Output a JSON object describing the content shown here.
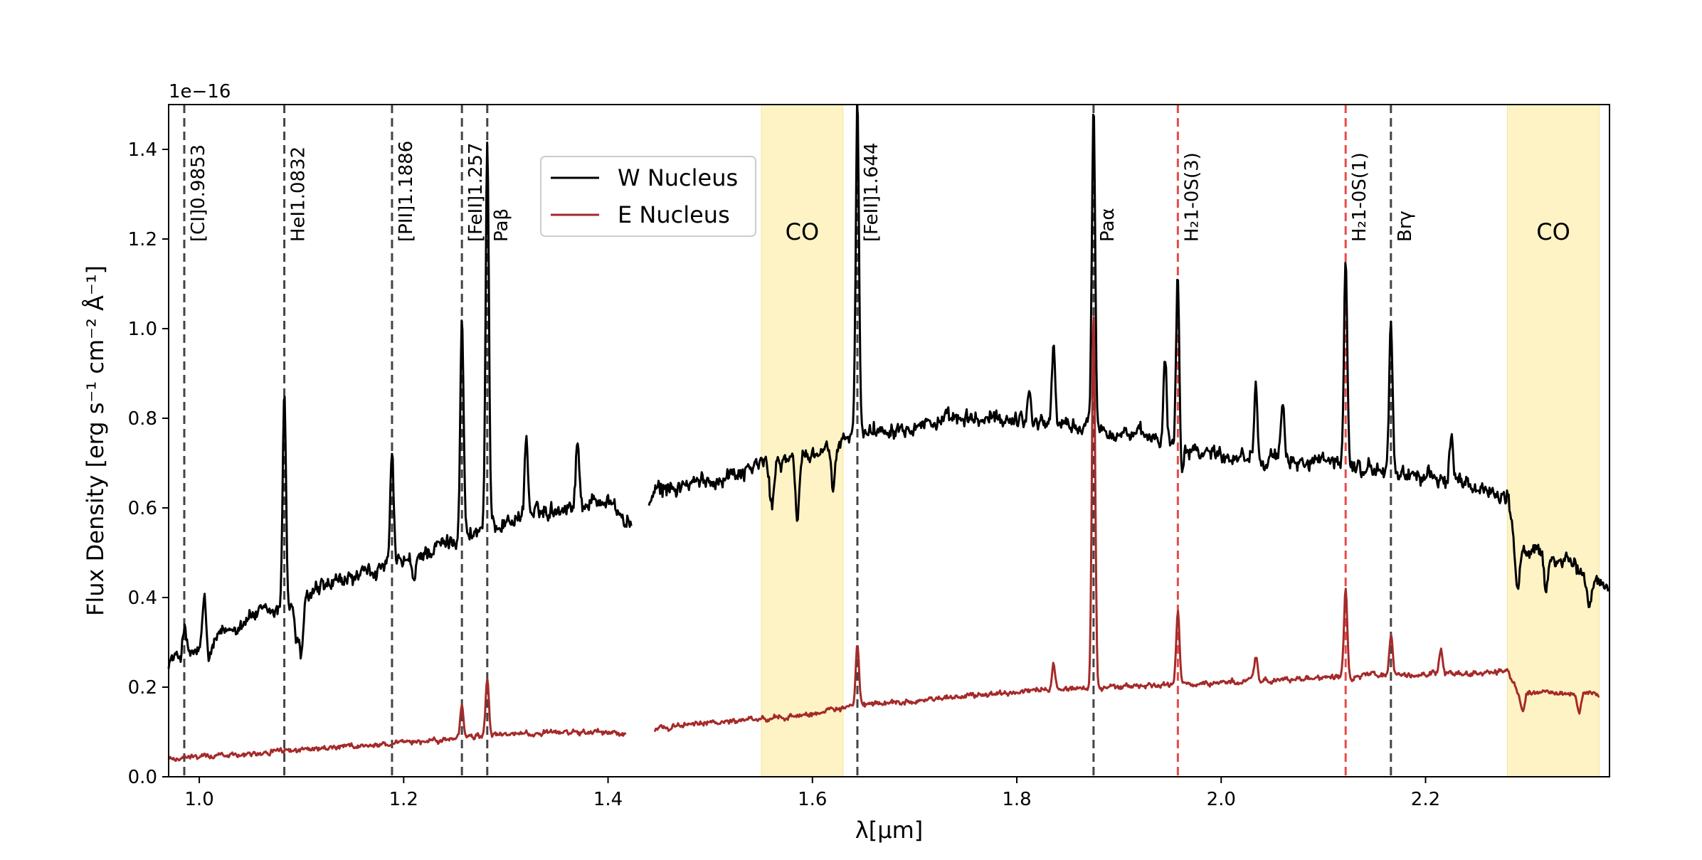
{
  "chart_data": {
    "type": "line",
    "title": "",
    "xlabel": "λ[μm]",
    "ylabel": "Flux Density [erg s⁻¹ cm⁻² Å⁻¹]",
    "y_offset_text": "1e−16",
    "xlim": [
      0.97,
      2.38
    ],
    "ylim": [
      0.0,
      1.5
    ],
    "xticks": [
      1.0,
      1.2,
      1.4,
      1.6,
      1.8,
      2.0,
      2.2
    ],
    "xtick_labels": [
      "1.0",
      "1.2",
      "1.4",
      "1.6",
      "1.8",
      "2.0",
      "2.2"
    ],
    "yticks": [
      0.0,
      0.2,
      0.4,
      0.6,
      0.8,
      1.0,
      1.2,
      1.4
    ],
    "ytick_labels": [
      "0.0",
      "0.2",
      "0.4",
      "0.6",
      "0.8",
      "1.0",
      "1.2",
      "1.4"
    ],
    "grid": false,
    "legend_position": "upper-center-left",
    "bands": [
      {
        "label": "CO",
        "x0": 1.55,
        "x1": 1.63,
        "color": "#fdf3c4"
      },
      {
        "label": "CO",
        "x0": 2.28,
        "x1": 2.37,
        "color": "#fdf3c4"
      }
    ],
    "lines": [
      {
        "label": "[CI]0.9853",
        "x": 0.9853,
        "color": "#444444"
      },
      {
        "label": "HeI1.0832",
        "x": 1.0832,
        "color": "#444444"
      },
      {
        "label": "[PII]1.1886",
        "x": 1.1886,
        "color": "#444444"
      },
      {
        "label": "[FeII]1.257",
        "x": 1.257,
        "color": "#444444"
      },
      {
        "label": "Paβ",
        "x": 1.2818,
        "color": "#444444"
      },
      {
        "label": "[FeII]1.644",
        "x": 1.644,
        "color": "#444444"
      },
      {
        "label": "Paα",
        "x": 1.8751,
        "color": "#444444"
      },
      {
        "label": "H₂1-0S(3)",
        "x": 1.9576,
        "color": "#e84a4a"
      },
      {
        "label": "H₂1-0S(1)",
        "x": 2.1218,
        "color": "#e84a4a"
      },
      {
        "label": "Brγ",
        "x": 2.1661,
        "color": "#444444"
      }
    ],
    "series": [
      {
        "name": "W Nucleus",
        "color": "#000000",
        "continuum": [
          [
            0.97,
            0.26
          ],
          [
            1.0,
            0.28
          ],
          [
            1.05,
            0.36
          ],
          [
            1.08,
            0.37
          ],
          [
            1.12,
            0.42
          ],
          [
            1.2,
            0.48
          ],
          [
            1.25,
            0.53
          ],
          [
            1.3,
            0.57
          ],
          [
            1.35,
            0.6
          ],
          [
            1.4,
            0.62
          ],
          [
            1.42,
            0.56
          ],
          [
            1.45,
            0.64
          ],
          [
            1.5,
            0.66
          ],
          [
            1.55,
            0.7
          ],
          [
            1.6,
            0.72
          ],
          [
            1.65,
            0.77
          ],
          [
            1.7,
            0.79
          ],
          [
            1.8,
            0.8
          ],
          [
            1.9,
            0.77
          ],
          [
            2.0,
            0.72
          ],
          [
            2.1,
            0.7
          ],
          [
            2.2,
            0.67
          ],
          [
            2.28,
            0.63
          ],
          [
            2.29,
            0.5
          ],
          [
            2.32,
            0.5
          ],
          [
            2.38,
            0.42
          ]
        ],
        "peaks": [
          [
            0.9853,
            0.34
          ],
          [
            1.005,
            0.4
          ],
          [
            1.0832,
            0.87
          ],
          [
            1.095,
            0.3
          ],
          [
            1.1886,
            0.72
          ],
          [
            1.257,
            1.03
          ],
          [
            1.2818,
            1.4
          ],
          [
            1.32,
            0.76
          ],
          [
            1.37,
            0.75
          ],
          [
            1.644,
            1.5
          ],
          [
            1.812,
            0.86
          ],
          [
            1.836,
            0.96
          ],
          [
            1.8751,
            1.5
          ],
          [
            1.945,
            0.94
          ],
          [
            1.9576,
            1.16
          ],
          [
            2.034,
            0.88
          ],
          [
            2.06,
            0.82
          ],
          [
            2.1218,
            1.16
          ],
          [
            2.1661,
            1.02
          ],
          [
            2.225,
            0.77
          ]
        ],
        "dips": [
          [
            1.01,
            0.26
          ],
          [
            1.1,
            0.27
          ],
          [
            1.21,
            0.43
          ],
          [
            1.56,
            0.6
          ],
          [
            1.585,
            0.58
          ],
          [
            1.62,
            0.63
          ],
          [
            1.96,
            0.66
          ],
          [
            2.29,
            0.41
          ],
          [
            2.318,
            0.42
          ],
          [
            2.36,
            0.37
          ]
        ],
        "gap": [
          1.423,
          1.44
        ]
      },
      {
        "name": "E Nucleus",
        "color": "#a52a2a",
        "continuum": [
          [
            0.97,
            0.04
          ],
          [
            1.0,
            0.045
          ],
          [
            1.1,
            0.06
          ],
          [
            1.2,
            0.075
          ],
          [
            1.3,
            0.095
          ],
          [
            1.4,
            0.1
          ],
          [
            1.42,
            0.095
          ],
          [
            1.45,
            0.11
          ],
          [
            1.55,
            0.13
          ],
          [
            1.6,
            0.14
          ],
          [
            1.65,
            0.16
          ],
          [
            1.7,
            0.17
          ],
          [
            1.8,
            0.19
          ],
          [
            1.9,
            0.2
          ],
          [
            2.0,
            0.21
          ],
          [
            2.1,
            0.22
          ],
          [
            2.2,
            0.23
          ],
          [
            2.28,
            0.235
          ],
          [
            2.29,
            0.19
          ],
          [
            2.37,
            0.185
          ]
        ],
        "peaks": [
          [
            1.257,
            0.16
          ],
          [
            1.2818,
            0.22
          ],
          [
            1.644,
            0.29
          ],
          [
            1.836,
            0.25
          ],
          [
            1.8751,
            1.04
          ],
          [
            1.9576,
            0.37
          ],
          [
            2.034,
            0.27
          ],
          [
            2.1218,
            0.42
          ],
          [
            2.1661,
            0.32
          ],
          [
            2.215,
            0.28
          ]
        ],
        "dips": [
          [
            2.295,
            0.15
          ],
          [
            2.35,
            0.14
          ]
        ],
        "gap": [
          1.418,
          1.445
        ]
      }
    ]
  }
}
